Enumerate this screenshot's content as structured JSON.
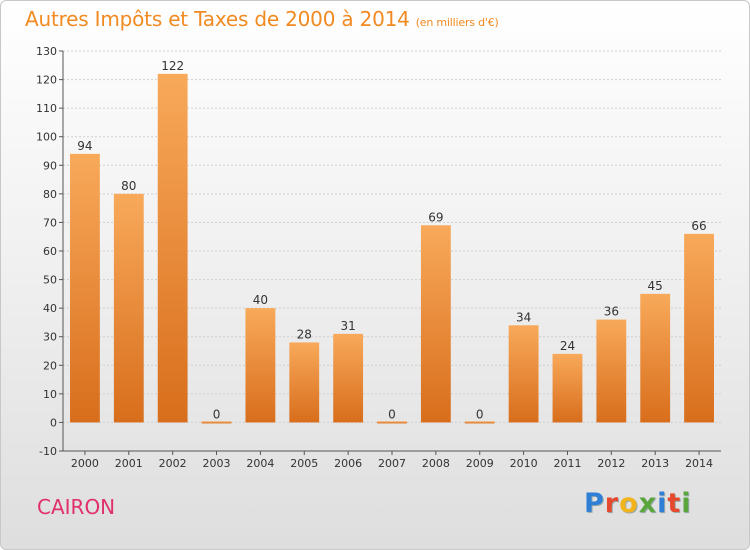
{
  "title": "Autres Impôts et Taxes de 2000 à 2014",
  "subtitle": "(en milliers d'€)",
  "commune": "CAIRON",
  "logo": {
    "text": "Proxiti",
    "letter_colors": [
      "#2f7fd6",
      "#e64a2e",
      "#f2b41c",
      "#5aa63c",
      "#2f7fd6",
      "#e64a2e",
      "#5aa63c"
    ]
  },
  "colors": {
    "title": "#f28a22",
    "commune": "#e0306a",
    "bar_light": "#f8a95a",
    "bar_dark": "#d86e1c",
    "axis": "#555555",
    "grid": "#cfcfcf",
    "text": "#333333"
  },
  "chart_data": {
    "type": "bar",
    "title": "Autres Impôts et Taxes de 2000 à 2014",
    "subtitle": "(en milliers d'€)",
    "categories": [
      "2000",
      "2001",
      "2002",
      "2003",
      "2004",
      "2005",
      "2006",
      "2007",
      "2008",
      "2009",
      "2010",
      "2011",
      "2012",
      "2013",
      "2014"
    ],
    "values": [
      94,
      80,
      122,
      0,
      40,
      28,
      31,
      0,
      69,
      0,
      34,
      24,
      36,
      45,
      66
    ],
    "ylim": [
      -10,
      130
    ],
    "yticks": [
      -10,
      0,
      10,
      20,
      30,
      40,
      50,
      60,
      70,
      80,
      90,
      100,
      110,
      120,
      130
    ],
    "grid": true,
    "data_labels": true
  }
}
